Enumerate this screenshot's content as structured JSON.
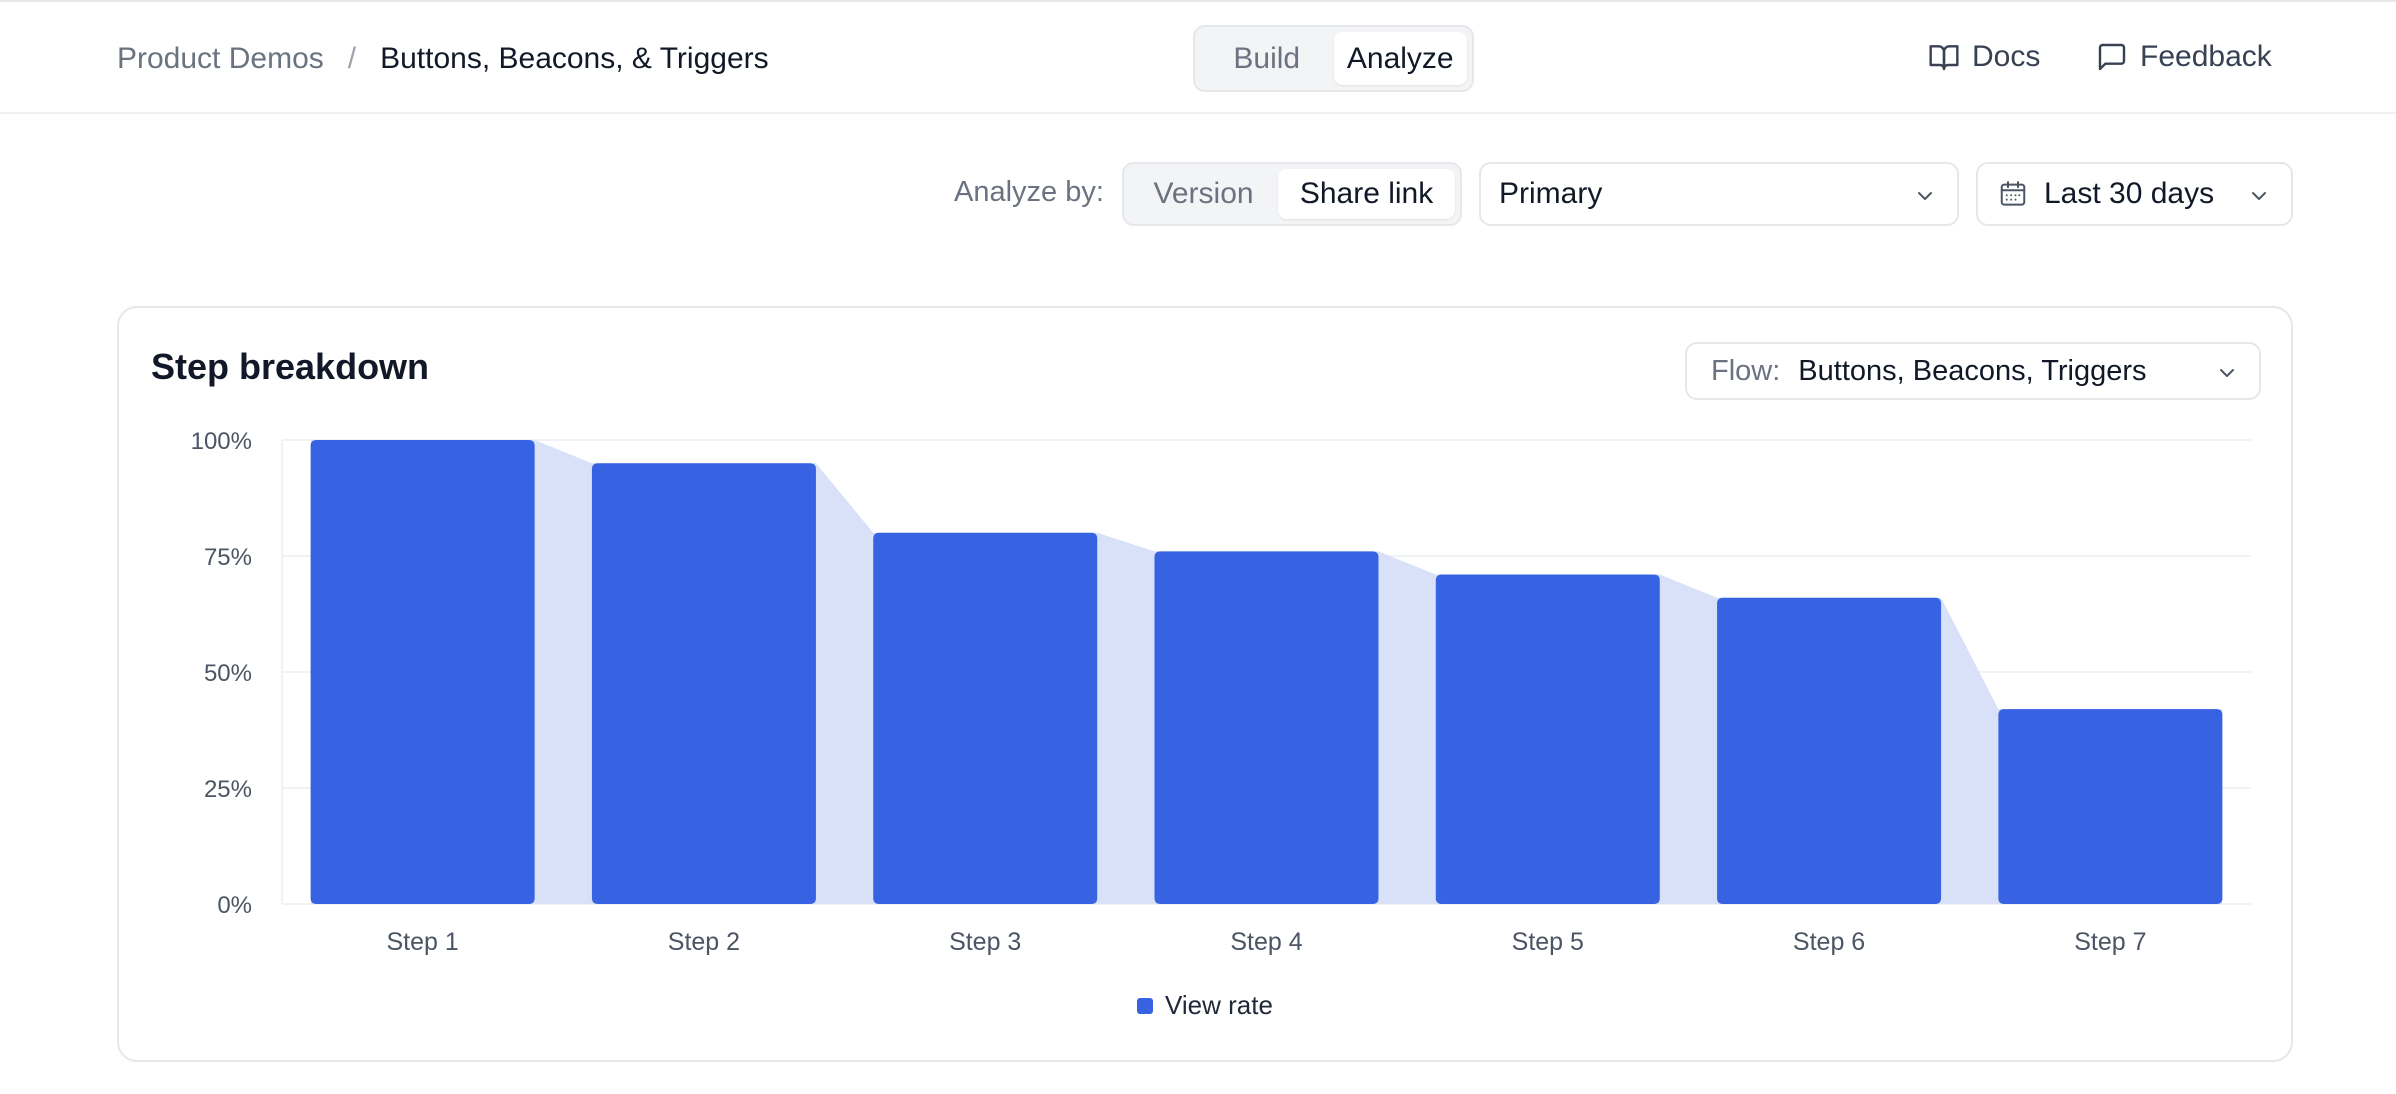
{
  "breadcrumb": {
    "parent": "Product Demos",
    "separator": "/",
    "current": "Buttons, Beacons, & Triggers"
  },
  "mode_toggle": {
    "build_label": "Build",
    "analyze_label": "Analyze",
    "active": "Analyze"
  },
  "top_actions": {
    "docs_label": "Docs",
    "feedback_label": "Feedback"
  },
  "toolbar": {
    "analyze_by_label": "Analyze by:",
    "version_label": "Version",
    "share_link_label": "Share link",
    "active": "Share link",
    "primary_select_value": "Primary",
    "date_range_value": "Last 30 days"
  },
  "card": {
    "title": "Step breakdown",
    "flow_label": "Flow:",
    "flow_value": "Buttons, Beacons, Triggers"
  },
  "colors": {
    "bar": "#3763e3",
    "area": "#d8e1f8",
    "grid": "#eceef2",
    "axis_text": "#4b5563"
  },
  "chart_data": {
    "type": "bar",
    "categories": [
      "Step 1",
      "Step 2",
      "Step 3",
      "Step 4",
      "Step 5",
      "Step 6",
      "Step 7"
    ],
    "series": [
      {
        "name": "View rate",
        "values": [
          100,
          95,
          80,
          76,
          71,
          66,
          42
        ]
      }
    ],
    "yticks": [
      "0%",
      "25%",
      "50%",
      "75%",
      "100%"
    ],
    "ylim": [
      0,
      100
    ],
    "grid": true,
    "legend": "bottom-center",
    "background_area": true
  }
}
